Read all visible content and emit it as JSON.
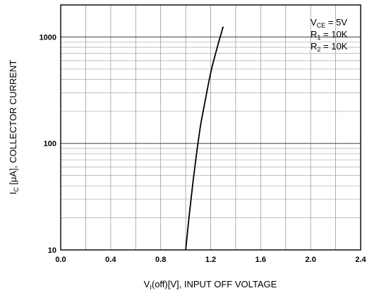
{
  "chart_data": {
    "type": "line",
    "xlabel": {
      "main": "V",
      "sub": "I",
      "rest": "(off)[V], INPUT OFF VOLTAGE"
    },
    "ylabel": {
      "main": "I",
      "sub": "C",
      "rest": " [μA], COLLECTOR CURRENT"
    },
    "xlim": [
      0,
      2.4
    ],
    "ylim": [
      10,
      2000
    ],
    "yscale": "log",
    "grid": true,
    "x_ticks": [
      {
        "value": 0.0,
        "label": "0.0"
      },
      {
        "value": 0.4,
        "label": "0.4"
      },
      {
        "value": 0.8,
        "label": "0.8"
      },
      {
        "value": 1.2,
        "label": "1.2"
      },
      {
        "value": 1.6,
        "label": "1.6"
      },
      {
        "value": 2.0,
        "label": "2.0"
      },
      {
        "value": 2.4,
        "label": "2.4"
      }
    ],
    "y_ticks": [
      {
        "value": 10,
        "label": "10"
      },
      {
        "value": 100,
        "label": "100"
      },
      {
        "value": 1000,
        "label": "1000"
      }
    ],
    "series": [
      {
        "x": [
          1.0,
          1.03,
          1.06,
          1.09,
          1.12,
          1.15,
          1.2,
          1.25,
          1.3
        ],
        "y": [
          10,
          22,
          45,
          85,
          150,
          230,
          460,
          780,
          1250
        ]
      }
    ],
    "annotations": [
      {
        "main": "V",
        "sub": "CE",
        "rest": " = 5V"
      },
      {
        "main": "R",
        "sub": "1",
        "rest": " = 10K"
      },
      {
        "main": "R",
        "sub": "2",
        "rest": " = 10K"
      }
    ]
  }
}
